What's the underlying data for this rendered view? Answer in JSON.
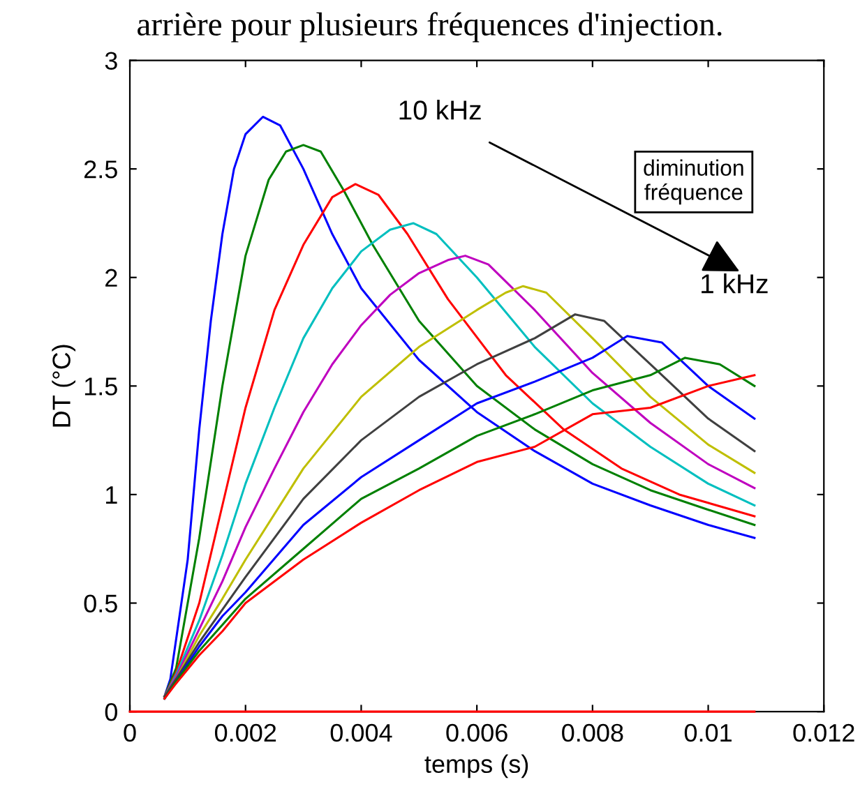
{
  "chart_data": {
    "type": "line",
    "xlabel": "temps (s)",
    "ylabel": "DT (°C)",
    "xlim": [
      0,
      0.012
    ],
    "ylim": [
      0,
      3
    ],
    "xticks": [
      0,
      0.002,
      0.004,
      0.006,
      0.008,
      0.01,
      0.012
    ],
    "yticks": [
      0,
      0.5,
      1,
      1.5,
      2,
      2.5,
      3
    ],
    "grid": false,
    "line_style": "solid",
    "marker": "none",
    "annotations": [
      "arrière pour plusieurs fréquences d'injection.",
      "10 kHz",
      "diminution fréquence",
      "1 kHz"
    ],
    "series": [
      {
        "color": "#0000ff",
        "x": [
          0.0006,
          0.0007,
          0.001,
          0.0012,
          0.0014,
          0.0016,
          0.0018,
          0.002,
          0.0023,
          0.0026,
          0.003,
          0.0035,
          0.004,
          0.005,
          0.006,
          0.007,
          0.008,
          0.009,
          0.01,
          0.0108
        ],
        "values": [
          0.07,
          0.15,
          0.7,
          1.3,
          1.8,
          2.2,
          2.5,
          2.66,
          2.74,
          2.7,
          2.5,
          2.2,
          1.95,
          1.62,
          1.38,
          1.2,
          1.05,
          0.95,
          0.86,
          0.8
        ]
      },
      {
        "color": "#008000",
        "x": [
          0.0006,
          0.0008,
          0.0012,
          0.0016,
          0.002,
          0.0024,
          0.0027,
          0.003,
          0.0033,
          0.0037,
          0.0042,
          0.005,
          0.006,
          0.007,
          0.008,
          0.009,
          0.01,
          0.0108
        ],
        "values": [
          0.07,
          0.2,
          0.8,
          1.5,
          2.1,
          2.45,
          2.58,
          2.61,
          2.58,
          2.4,
          2.15,
          1.8,
          1.5,
          1.3,
          1.14,
          1.02,
          0.93,
          0.86
        ]
      },
      {
        "color": "#ff0000",
        "x": [
          0.0006,
          0.0008,
          0.0012,
          0.0016,
          0.002,
          0.0025,
          0.003,
          0.0035,
          0.0039,
          0.0043,
          0.0048,
          0.0055,
          0.0065,
          0.0075,
          0.0085,
          0.0095,
          0.0108
        ],
        "values": [
          0.07,
          0.18,
          0.5,
          0.95,
          1.4,
          1.85,
          2.15,
          2.37,
          2.43,
          2.38,
          2.2,
          1.9,
          1.55,
          1.3,
          1.12,
          1.0,
          0.9
        ]
      },
      {
        "color": "#00bfbf",
        "x": [
          0.0006,
          0.0008,
          0.0012,
          0.0016,
          0.002,
          0.0025,
          0.003,
          0.0035,
          0.004,
          0.0045,
          0.0049,
          0.0053,
          0.006,
          0.007,
          0.008,
          0.009,
          0.01,
          0.0108
        ],
        "values": [
          0.07,
          0.17,
          0.42,
          0.72,
          1.05,
          1.4,
          1.72,
          1.95,
          2.12,
          2.22,
          2.25,
          2.2,
          2.0,
          1.68,
          1.42,
          1.22,
          1.05,
          0.95
        ]
      },
      {
        "color": "#bf00bf",
        "x": [
          0.0006,
          0.0008,
          0.0012,
          0.0016,
          0.002,
          0.0025,
          0.003,
          0.0035,
          0.004,
          0.0045,
          0.005,
          0.0055,
          0.0058,
          0.0062,
          0.007,
          0.008,
          0.009,
          0.01,
          0.0108
        ],
        "values": [
          0.07,
          0.16,
          0.38,
          0.6,
          0.85,
          1.12,
          1.38,
          1.6,
          1.78,
          1.92,
          2.02,
          2.08,
          2.1,
          2.06,
          1.85,
          1.56,
          1.33,
          1.14,
          1.03
        ]
      },
      {
        "color": "#bfbf00",
        "x": [
          0.0006,
          0.0008,
          0.0012,
          0.0016,
          0.002,
          0.003,
          0.004,
          0.005,
          0.006,
          0.0065,
          0.0068,
          0.0072,
          0.008,
          0.009,
          0.01,
          0.0108
        ],
        "values": [
          0.07,
          0.15,
          0.35,
          0.52,
          0.7,
          1.12,
          1.45,
          1.68,
          1.85,
          1.93,
          1.96,
          1.93,
          1.72,
          1.45,
          1.23,
          1.1
        ]
      },
      {
        "color": "#404040",
        "x": [
          0.0006,
          0.0008,
          0.0012,
          0.0016,
          0.002,
          0.003,
          0.004,
          0.005,
          0.006,
          0.007,
          0.0077,
          0.0082,
          0.009,
          0.01,
          0.0108
        ],
        "values": [
          0.07,
          0.15,
          0.32,
          0.47,
          0.62,
          0.98,
          1.25,
          1.45,
          1.6,
          1.72,
          1.83,
          1.8,
          1.6,
          1.35,
          1.2
        ]
      },
      {
        "color": "#0000ff",
        "x": [
          0.0006,
          0.0008,
          0.0012,
          0.0016,
          0.002,
          0.003,
          0.004,
          0.005,
          0.006,
          0.007,
          0.008,
          0.0086,
          0.0092,
          0.01,
          0.0108
        ],
        "values": [
          0.06,
          0.14,
          0.3,
          0.44,
          0.55,
          0.86,
          1.08,
          1.25,
          1.42,
          1.52,
          1.63,
          1.73,
          1.7,
          1.5,
          1.35
        ]
      },
      {
        "color": "#008000",
        "x": [
          0.0006,
          0.0008,
          0.0012,
          0.0016,
          0.002,
          0.003,
          0.004,
          0.005,
          0.006,
          0.007,
          0.008,
          0.009,
          0.0096,
          0.0102,
          0.0108
        ],
        "values": [
          0.06,
          0.14,
          0.28,
          0.4,
          0.52,
          0.75,
          0.98,
          1.12,
          1.27,
          1.37,
          1.48,
          1.55,
          1.63,
          1.6,
          1.5
        ]
      },
      {
        "color": "#ff0000",
        "x": [
          0.0006,
          0.0008,
          0.0012,
          0.0016,
          0.002,
          0.003,
          0.004,
          0.005,
          0.006,
          0.007,
          0.008,
          0.009,
          0.01,
          0.0108
        ],
        "values": [
          0.06,
          0.13,
          0.26,
          0.37,
          0.5,
          0.7,
          0.87,
          1.02,
          1.15,
          1.22,
          1.37,
          1.4,
          1.5,
          1.55
        ]
      },
      {
        "color": "#ff0000",
        "x": [
          0,
          0.0108
        ],
        "values": [
          0,
          0
        ]
      }
    ]
  }
}
